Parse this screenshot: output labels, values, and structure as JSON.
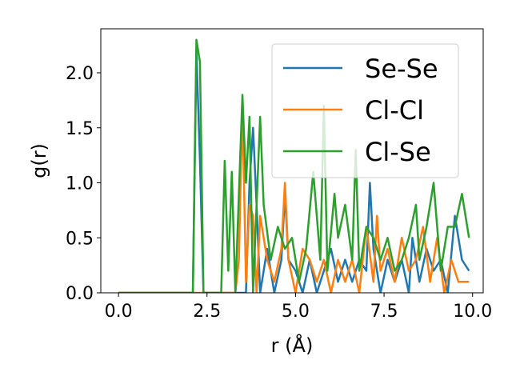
{
  "chart_data": {
    "type": "line",
    "title": "",
    "xlabel": "r (Å)",
    "ylabel": "g(r)",
    "xlim": [
      -0.5,
      10.3
    ],
    "ylim": [
      0.0,
      2.4
    ],
    "xticks": [
      0.0,
      2.5,
      5.0,
      7.5,
      10.0
    ],
    "xtick_labels": [
      "0.0",
      "2.5",
      "5.0",
      "7.5",
      "10.0"
    ],
    "yticks": [
      0.0,
      0.5,
      1.0,
      1.5,
      2.0
    ],
    "ytick_labels": [
      "0.0",
      "0.5",
      "1.0",
      "1.5",
      "2.0"
    ],
    "grid": false,
    "legend_position": "top-right",
    "series": [
      {
        "name": "Se-Se",
        "color": "#1f77b4",
        "x": [
          0.0,
          2.1,
          2.2,
          2.3,
          2.4,
          3.6,
          3.7,
          3.8,
          3.9,
          4.0,
          4.2,
          4.4,
          4.6,
          4.7,
          4.8,
          5.0,
          5.2,
          5.4,
          5.6,
          5.8,
          6.0,
          6.2,
          6.4,
          6.6,
          6.8,
          7.0,
          7.1,
          7.2,
          7.4,
          7.6,
          7.8,
          8.0,
          8.2,
          8.3,
          8.5,
          8.7,
          8.9,
          9.1,
          9.3,
          9.5,
          9.7,
          9.9
        ],
        "y": [
          0.0,
          0.0,
          2.2,
          1.2,
          0.0,
          0.0,
          1.0,
          1.5,
          0.8,
          0.0,
          0.4,
          0.0,
          0.3,
          0.9,
          0.3,
          0.2,
          0.0,
          0.3,
          0.0,
          0.2,
          0.4,
          0.1,
          0.3,
          0.1,
          0.3,
          0.2,
          1.0,
          0.4,
          0.0,
          0.3,
          0.1,
          0.3,
          0.0,
          0.5,
          0.1,
          0.4,
          0.2,
          0.3,
          0.0,
          0.7,
          0.3,
          0.2
        ]
      },
      {
        "name": "Cl-Cl",
        "color": "#ff7f0e",
        "x": [
          0.0,
          3.3,
          3.4,
          3.5,
          3.6,
          3.7,
          3.8,
          3.9,
          4.0,
          4.2,
          4.4,
          4.6,
          4.7,
          4.8,
          5.0,
          5.2,
          5.4,
          5.6,
          5.8,
          6.0,
          6.2,
          6.4,
          6.6,
          6.8,
          7.0,
          7.2,
          7.3,
          7.4,
          7.6,
          7.8,
          8.0,
          8.2,
          8.4,
          8.6,
          8.8,
          9.0,
          9.2,
          9.4,
          9.6,
          9.9
        ],
        "y": [
          0.0,
          0.0,
          0.3,
          1.7,
          0.1,
          0.8,
          0.7,
          0.0,
          0.7,
          0.3,
          0.1,
          0.4,
          1.0,
          0.3,
          0.0,
          0.4,
          0.3,
          0.1,
          0.3,
          0.0,
          0.3,
          0.1,
          0.3,
          0.0,
          0.6,
          0.1,
          0.7,
          0.2,
          0.4,
          0.1,
          0.5,
          0.2,
          0.3,
          0.6,
          0.1,
          0.5,
          0.0,
          0.3,
          0.1,
          0.1
        ]
      },
      {
        "name": "Cl-Se",
        "color": "#2ca02c",
        "x": [
          0.0,
          2.1,
          2.2,
          2.3,
          2.4,
          2.9,
          3.0,
          3.1,
          3.2,
          3.3,
          3.4,
          3.5,
          3.6,
          3.7,
          3.8,
          4.0,
          4.1,
          4.3,
          4.5,
          4.7,
          4.9,
          5.1,
          5.3,
          5.5,
          5.7,
          5.8,
          5.9,
          6.1,
          6.2,
          6.4,
          6.6,
          6.7,
          6.8,
          7.0,
          7.2,
          7.4,
          7.6,
          7.8,
          8.0,
          8.2,
          8.4,
          8.5,
          8.7,
          8.9,
          9.1,
          9.3,
          9.5,
          9.7,
          9.9
        ],
        "y": [
          0.0,
          0.0,
          2.3,
          2.1,
          0.0,
          0.0,
          1.2,
          0.2,
          1.1,
          0.0,
          0.9,
          1.8,
          1.0,
          1.6,
          0.0,
          1.6,
          0.8,
          0.3,
          0.6,
          0.4,
          0.5,
          0.1,
          0.4,
          1.1,
          0.3,
          1.7,
          0.2,
          0.9,
          0.5,
          0.8,
          0.3,
          1.3,
          0.2,
          0.6,
          0.5,
          0.3,
          0.5,
          0.2,
          0.3,
          0.5,
          0.8,
          0.3,
          0.6,
          1.0,
          0.2,
          0.6,
          0.6,
          0.9,
          0.5
        ]
      }
    ]
  }
}
